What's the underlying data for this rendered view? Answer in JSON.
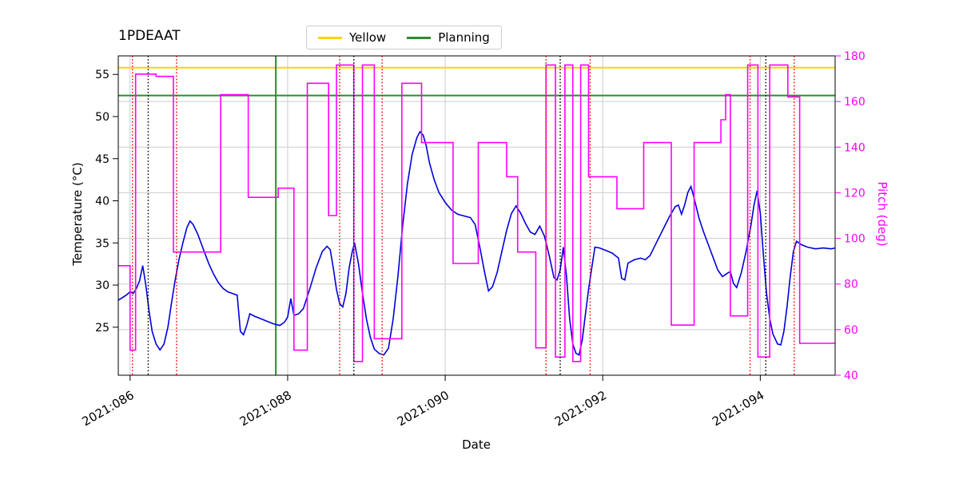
{
  "title": "1PDEAAT",
  "legend": {
    "items": [
      {
        "label": "Yellow",
        "color": "#ffd400"
      },
      {
        "label": "Planning",
        "color": "#2e8b2e"
      }
    ]
  },
  "axes": {
    "xlabel": "Date",
    "ylabel_left": "Temperature (°C)",
    "ylabel_right": "Pitch (deg)",
    "xlim": [
      85.85,
      94.95
    ],
    "x_ticks": [
      {
        "value": 86,
        "label": "2021:086"
      },
      {
        "value": 88,
        "label": "2021:088"
      },
      {
        "value": 90,
        "label": "2021:090"
      },
      {
        "value": 92,
        "label": "2021:092"
      },
      {
        "value": 94,
        "label": "2021:094"
      }
    ],
    "ylim_left": [
      19.3,
      57.2
    ],
    "y_ticks_left": [
      25,
      30,
      35,
      40,
      45,
      50,
      55
    ],
    "ylim_right": [
      40,
      180
    ],
    "y_ticks_right": [
      40,
      60,
      80,
      100,
      120,
      140,
      160,
      180
    ],
    "grid_color": "#cccccc",
    "spine_color": "#000000"
  },
  "chart_data": {
    "type": "line",
    "title": "1PDEAAT",
    "xlabel": "Date",
    "x_tick_labels": [
      "2021:086",
      "2021:088",
      "2021:090",
      "2021:092",
      "2021:094"
    ],
    "left_axis": {
      "label": "Temperature (°C)",
      "range": [
        19.3,
        57.2
      ],
      "ticks": [
        25,
        30,
        35,
        40,
        45,
        50,
        55
      ]
    },
    "right_axis": {
      "label": "Pitch (deg)",
      "range": [
        40,
        180
      ],
      "ticks": [
        40,
        60,
        80,
        100,
        120,
        140,
        160,
        180
      ]
    },
    "legend_position": "upper center, outside axes",
    "grid": true,
    "series": [
      {
        "name": "Temperature",
        "axis": "left",
        "color": "#0000dd",
        "style": "solid",
        "points": [
          [
            85.85,
            28.2
          ],
          [
            85.9,
            28.5
          ],
          [
            85.95,
            28.8
          ],
          [
            86.0,
            29.2
          ],
          [
            86.04,
            29.0
          ],
          [
            86.08,
            29.6
          ],
          [
            86.12,
            30.5
          ],
          [
            86.16,
            32.3
          ],
          [
            86.2,
            30.0
          ],
          [
            86.24,
            27.0
          ],
          [
            86.28,
            24.5
          ],
          [
            86.33,
            23.0
          ],
          [
            86.38,
            22.3
          ],
          [
            86.43,
            23.0
          ],
          [
            86.48,
            25.0
          ],
          [
            86.52,
            27.5
          ],
          [
            86.57,
            30.5
          ],
          [
            86.62,
            33.0
          ],
          [
            86.67,
            35.0
          ],
          [
            86.72,
            36.8
          ],
          [
            86.76,
            37.6
          ],
          [
            86.8,
            37.2
          ],
          [
            86.86,
            36.0
          ],
          [
            86.92,
            34.5
          ],
          [
            87.0,
            32.5
          ],
          [
            87.06,
            31.3
          ],
          [
            87.12,
            30.3
          ],
          [
            87.18,
            29.6
          ],
          [
            87.24,
            29.2
          ],
          [
            87.3,
            29.0
          ],
          [
            87.36,
            28.8
          ],
          [
            87.4,
            24.5
          ],
          [
            87.44,
            24.1
          ],
          [
            87.48,
            25.2
          ],
          [
            87.52,
            26.6
          ],
          [
            87.58,
            26.3
          ],
          [
            87.66,
            26.0
          ],
          [
            87.74,
            25.7
          ],
          [
            87.82,
            25.4
          ],
          [
            87.9,
            25.2
          ],
          [
            87.96,
            25.6
          ],
          [
            88.0,
            26.2
          ],
          [
            88.04,
            28.4
          ],
          [
            88.08,
            26.4
          ],
          [
            88.14,
            26.6
          ],
          [
            88.2,
            27.2
          ],
          [
            88.28,
            29.5
          ],
          [
            88.36,
            32.0
          ],
          [
            88.44,
            34.0
          ],
          [
            88.5,
            34.6
          ],
          [
            88.54,
            34.2
          ],
          [
            88.58,
            32.0
          ],
          [
            88.62,
            29.5
          ],
          [
            88.66,
            27.8
          ],
          [
            88.7,
            27.4
          ],
          [
            88.74,
            29.0
          ],
          [
            88.78,
            32.0
          ],
          [
            88.82,
            34.0
          ],
          [
            88.85,
            35.0
          ],
          [
            88.9,
            32.5
          ],
          [
            88.95,
            29.0
          ],
          [
            89.0,
            26.0
          ],
          [
            89.05,
            23.8
          ],
          [
            89.1,
            22.4
          ],
          [
            89.16,
            21.9
          ],
          [
            89.22,
            21.7
          ],
          [
            89.28,
            22.5
          ],
          [
            89.34,
            26.0
          ],
          [
            89.4,
            31.0
          ],
          [
            89.46,
            37.0
          ],
          [
            89.52,
            42.0
          ],
          [
            89.58,
            45.5
          ],
          [
            89.64,
            47.5
          ],
          [
            89.68,
            48.2
          ],
          [
            89.72,
            47.8
          ],
          [
            89.76,
            46.5
          ],
          [
            89.8,
            44.5
          ],
          [
            89.86,
            42.5
          ],
          [
            89.92,
            41.0
          ],
          [
            90.0,
            39.8
          ],
          [
            90.08,
            38.9
          ],
          [
            90.16,
            38.4
          ],
          [
            90.24,
            38.2
          ],
          [
            90.32,
            38.0
          ],
          [
            90.38,
            37.2
          ],
          [
            90.44,
            34.5
          ],
          [
            90.5,
            31.5
          ],
          [
            90.55,
            29.3
          ],
          [
            90.6,
            29.8
          ],
          [
            90.66,
            31.5
          ],
          [
            90.72,
            34.0
          ],
          [
            90.78,
            36.5
          ],
          [
            90.84,
            38.5
          ],
          [
            90.9,
            39.4
          ],
          [
            90.96,
            38.5
          ],
          [
            91.02,
            37.3
          ],
          [
            91.08,
            36.3
          ],
          [
            91.14,
            36.0
          ],
          [
            91.2,
            37.0
          ],
          [
            91.26,
            35.8
          ],
          [
            91.32,
            33.5
          ],
          [
            91.38,
            30.9
          ],
          [
            91.42,
            30.6
          ],
          [
            91.46,
            31.8
          ],
          [
            91.5,
            34.5
          ],
          [
            91.54,
            31.0
          ],
          [
            91.58,
            26.0
          ],
          [
            91.62,
            23.0
          ],
          [
            91.66,
            21.9
          ],
          [
            91.7,
            21.7
          ],
          [
            91.74,
            23.5
          ],
          [
            91.78,
            26.5
          ],
          [
            91.82,
            29.5
          ],
          [
            91.86,
            32.0
          ],
          [
            91.9,
            34.5
          ],
          [
            91.96,
            34.4
          ],
          [
            92.04,
            34.1
          ],
          [
            92.12,
            33.8
          ],
          [
            92.2,
            33.2
          ],
          [
            92.24,
            30.8
          ],
          [
            92.28,
            30.6
          ],
          [
            92.32,
            32.6
          ],
          [
            92.4,
            33.0
          ],
          [
            92.48,
            33.2
          ],
          [
            92.54,
            33.0
          ],
          [
            92.6,
            33.5
          ],
          [
            92.68,
            35.0
          ],
          [
            92.76,
            36.5
          ],
          [
            92.84,
            38.0
          ],
          [
            92.92,
            39.3
          ],
          [
            92.96,
            39.5
          ],
          [
            93.0,
            38.4
          ],
          [
            93.04,
            39.5
          ],
          [
            93.08,
            41.0
          ],
          [
            93.12,
            41.7
          ],
          [
            93.16,
            40.3
          ],
          [
            93.22,
            38.0
          ],
          [
            93.28,
            36.3
          ],
          [
            93.34,
            34.8
          ],
          [
            93.4,
            33.3
          ],
          [
            93.46,
            31.8
          ],
          [
            93.52,
            31.0
          ],
          [
            93.58,
            31.4
          ],
          [
            93.62,
            31.6
          ],
          [
            93.66,
            30.2
          ],
          [
            93.7,
            29.7
          ],
          [
            93.76,
            31.5
          ],
          [
            93.82,
            34.0
          ],
          [
            93.88,
            37.0
          ],
          [
            93.92,
            39.5
          ],
          [
            93.96,
            41.2
          ],
          [
            94.0,
            38.5
          ],
          [
            94.04,
            33.5
          ],
          [
            94.08,
            29.0
          ],
          [
            94.12,
            26.0
          ],
          [
            94.16,
            24.2
          ],
          [
            94.22,
            23.0
          ],
          [
            94.26,
            22.9
          ],
          [
            94.3,
            24.5
          ],
          [
            94.34,
            27.5
          ],
          [
            94.38,
            31.0
          ],
          [
            94.42,
            34.0
          ],
          [
            94.46,
            35.2
          ],
          [
            94.52,
            34.8
          ],
          [
            94.6,
            34.5
          ],
          [
            94.7,
            34.3
          ],
          [
            94.8,
            34.4
          ],
          [
            94.9,
            34.3
          ],
          [
            94.95,
            34.4
          ]
        ]
      },
      {
        "name": "Pitch",
        "axis": "right",
        "color": "#ff00ff",
        "style": "step-post",
        "end_x": 94.95,
        "points": [
          [
            85.85,
            88
          ],
          [
            86.0,
            51
          ],
          [
            86.07,
            172
          ],
          [
            86.33,
            171
          ],
          [
            86.55,
            94
          ],
          [
            87.15,
            163
          ],
          [
            87.5,
            118
          ],
          [
            87.88,
            122
          ],
          [
            88.08,
            51
          ],
          [
            88.25,
            168
          ],
          [
            88.52,
            110
          ],
          [
            88.62,
            176
          ],
          [
            88.84,
            46
          ],
          [
            88.95,
            176
          ],
          [
            89.1,
            56
          ],
          [
            89.45,
            168
          ],
          [
            89.7,
            142
          ],
          [
            90.1,
            89
          ],
          [
            90.42,
            142
          ],
          [
            90.78,
            127
          ],
          [
            90.92,
            94
          ],
          [
            91.15,
            52
          ],
          [
            91.28,
            176
          ],
          [
            91.4,
            48
          ],
          [
            91.52,
            176
          ],
          [
            91.62,
            46
          ],
          [
            91.72,
            176
          ],
          [
            91.82,
            127
          ],
          [
            92.18,
            113
          ],
          [
            92.52,
            142
          ],
          [
            92.87,
            62
          ],
          [
            93.16,
            142
          ],
          [
            93.5,
            152
          ],
          [
            93.56,
            163
          ],
          [
            93.62,
            66
          ],
          [
            93.84,
            176
          ],
          [
            93.97,
            48
          ],
          [
            94.12,
            176
          ],
          [
            94.35,
            162
          ],
          [
            94.5,
            54
          ]
        ]
      }
    ],
    "reference_lines": [
      {
        "name": "Yellow",
        "orientation": "horizontal",
        "axis": "left",
        "value": 55.8,
        "color": "#ffd400",
        "style": "solid",
        "width": 2
      },
      {
        "name": "Planning",
        "orientation": "horizontal",
        "axis": "left",
        "value": 52.5,
        "color": "#2e8b2e",
        "style": "solid",
        "width": 2
      },
      {
        "name": "Planning-time",
        "orientation": "vertical",
        "value": 87.85,
        "color": "#2e8b2e",
        "style": "solid",
        "width": 2
      }
    ],
    "event_vlines": {
      "red_dotted": [
        86.03,
        86.59,
        88.66,
        89.2,
        91.28,
        91.84,
        93.87,
        94.43
      ],
      "black_dotted": [
        86.23,
        88.84,
        91.46,
        94.07
      ],
      "red_color": "#ff0000",
      "black_color": "#000000"
    }
  }
}
